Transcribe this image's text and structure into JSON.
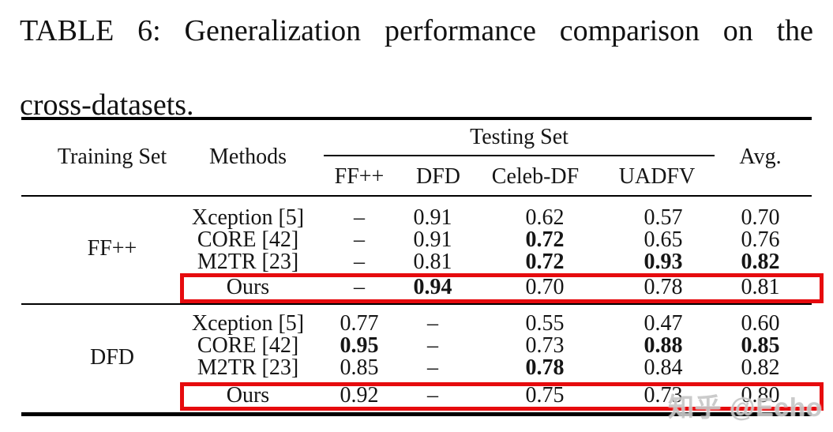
{
  "caption": {
    "full": "TABLE 6: Generalization performance comparison on the cross-datasets.",
    "line1": "TABLE 6: Generalization performance comparison on the",
    "line2": "cross-datasets."
  },
  "table": {
    "header": {
      "training_set": "Training Set",
      "methods": "Methods",
      "testing_set": "Testing Set",
      "testing_columns": [
        "FF++",
        "DFD",
        "Celeb-DF",
        "UADFV"
      ],
      "avg": "Avg."
    },
    "blocks": [
      {
        "training_set": "FF++",
        "rows": [
          {
            "method": "Xception [5]",
            "values": [
              "–",
              "0.91",
              "0.62",
              "0.57",
              "0.70"
            ],
            "bold": [
              false,
              false,
              false,
              false,
              false
            ],
            "highlighted": false
          },
          {
            "method": "CORE [42]",
            "values": [
              "–",
              "0.91",
              "0.72",
              "0.65",
              "0.76"
            ],
            "bold": [
              false,
              false,
              true,
              false,
              false
            ],
            "highlighted": false
          },
          {
            "method": "M2TR [23]",
            "values": [
              "–",
              "0.81",
              "0.72",
              "0.93",
              "0.82"
            ],
            "bold": [
              false,
              false,
              true,
              true,
              true
            ],
            "highlighted": false
          },
          {
            "method": "Ours",
            "values": [
              "–",
              "0.94",
              "0.70",
              "0.78",
              "0.81"
            ],
            "bold": [
              false,
              true,
              false,
              false,
              false
            ],
            "highlighted": true
          }
        ]
      },
      {
        "training_set": "DFD",
        "rows": [
          {
            "method": "Xception [5]",
            "values": [
              "0.77",
              "–",
              "0.55",
              "0.47",
              "0.60"
            ],
            "bold": [
              false,
              false,
              false,
              false,
              false
            ],
            "highlighted": false
          },
          {
            "method": "CORE [42]",
            "values": [
              "0.95",
              "–",
              "0.73",
              "0.88",
              "0.85"
            ],
            "bold": [
              true,
              false,
              false,
              true,
              true
            ],
            "highlighted": false
          },
          {
            "method": "M2TR [23]",
            "values": [
              "0.85",
              "–",
              "0.78",
              "0.84",
              "0.82"
            ],
            "bold": [
              false,
              false,
              true,
              false,
              false
            ],
            "highlighted": false
          },
          {
            "method": "Ours",
            "values": [
              "0.92",
              "–",
              "0.75",
              "0.73",
              "0.80"
            ],
            "bold": [
              false,
              false,
              false,
              false,
              false
            ],
            "highlighted": true
          }
        ]
      }
    ]
  },
  "watermark": "知乎 @Echo",
  "colors": {
    "highlight_box": "#e60b0e",
    "text": "#151515",
    "rule": "#000000",
    "watermark": "#c7c7c7"
  }
}
